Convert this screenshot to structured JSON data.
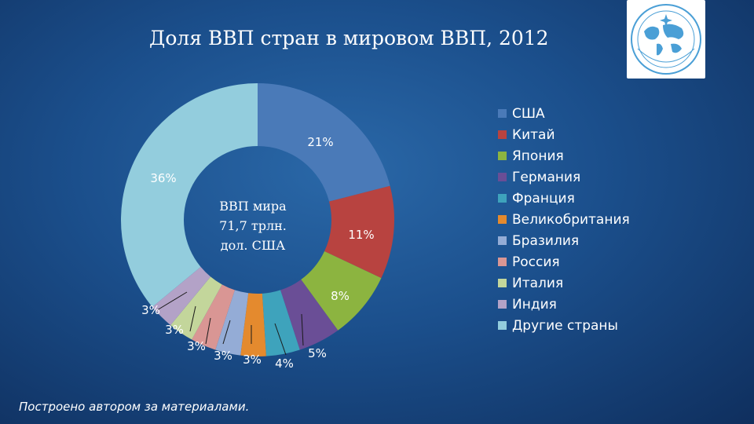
{
  "title": "Доля ВВП стран в мировом ВВП, 2012",
  "center_text": [
    "ВВП мира",
    "71,7 трлн.",
    "дол. США"
  ],
  "footer": "Построено автором за материалами.",
  "logo": {
    "icon": "world-map-emblem-icon"
  },
  "chart_data": {
    "type": "pie",
    "style": "donut",
    "title": "Доля ВВП стран в мировом ВВП, 2012",
    "legend_position": "right",
    "categories": [
      "США",
      "Китай",
      "Япония",
      "Германия",
      "Франция",
      "Великобритания",
      "Бразилия",
      "Россия",
      "Италия",
      "Индия",
      "Другие страны"
    ],
    "values": [
      21,
      11,
      8,
      5,
      4,
      3,
      3,
      3,
      3,
      3,
      36
    ],
    "data_labels": [
      "21%",
      "11%",
      "8%",
      "5%",
      "4%",
      "3%",
      "3%",
      "3%",
      "3%",
      "3%",
      "36%"
    ],
    "colors": [
      "#4a7ab8",
      "#b84340",
      "#8cb440",
      "#6a4e96",
      "#3ea3bc",
      "#e48a2e",
      "#94acd6",
      "#d99694",
      "#c3d69b",
      "#b3a2c7",
      "#93cddd"
    ]
  }
}
